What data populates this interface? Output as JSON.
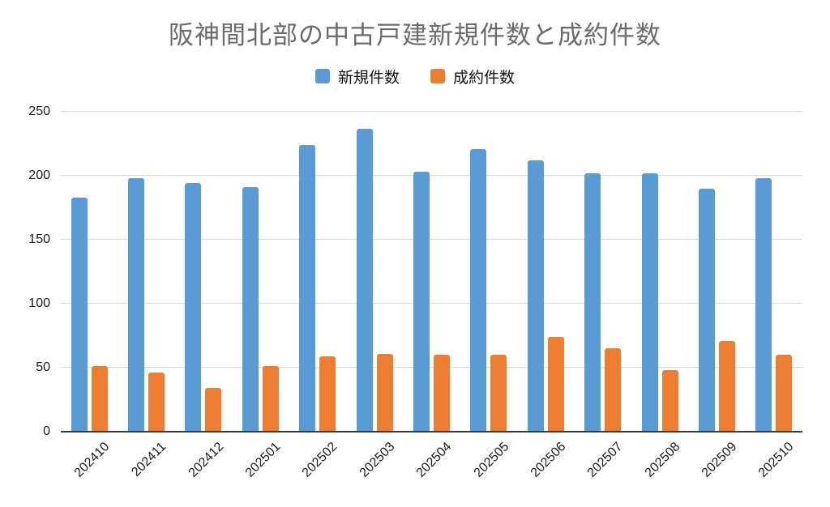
{
  "page": {
    "background": "#ffffff"
  },
  "chart_data": {
    "type": "bar",
    "title": "阪神間北部の中古戸建新規件数と成約件数",
    "categories": [
      "202410",
      "202411",
      "202412",
      "202501",
      "202502",
      "202503",
      "202504",
      "202505",
      "202506",
      "202507",
      "202508",
      "202509",
      "202510"
    ],
    "series": [
      {
        "name": "新規件数",
        "color": "#5B9BD5",
        "values": [
          183,
          198,
          194,
          191,
          224,
          237,
          203,
          221,
          212,
          202,
          202,
          190,
          198
        ]
      },
      {
        "name": "成約件数",
        "color": "#ED7D31",
        "values": [
          51,
          46,
          34,
          51,
          59,
          61,
          60,
          60,
          74,
          65,
          48,
          71,
          60
        ]
      }
    ],
    "xlabel": "",
    "ylabel": "",
    "ylim": [
      0,
      250
    ],
    "yticks": [
      0,
      50,
      100,
      150,
      200,
      250
    ],
    "grid": true,
    "legend_position": "top",
    "colors": {
      "title_text": "#6b6b6b",
      "gridline": "#d9d9d9",
      "axis_line": "#3a3a3a",
      "tick_text": "#1c1c1c",
      "legend_text": "#111111"
    }
  }
}
